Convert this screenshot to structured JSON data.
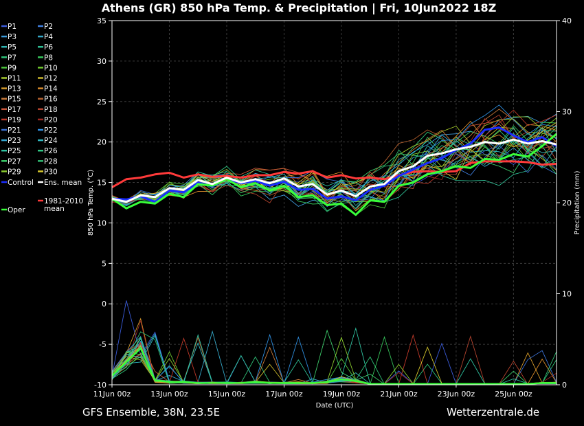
{
  "chart_data": {
    "type": "line",
    "title": "Athens  (GR)  850 hPa Temp. & Precipitation | Fri, 10Jun2022 18Z",
    "ylabel": "850 hPa Temp. (°C)",
    "y2label": "Precipitation (mm)",
    "xlabel": "Date (UTC)",
    "ylim": [
      -10,
      35
    ],
    "y2lim": [
      0,
      40
    ],
    "yticks": [
      "35",
      "30",
      "25",
      "20",
      "15",
      "10",
      "5",
      "0",
      "-5",
      "-10"
    ],
    "y2ticks": [
      "40",
      "30",
      "20",
      "10",
      "0"
    ],
    "xticks": [
      "11Jun 00z",
      "13Jun 00z",
      "15Jun 00z",
      "17Jun 00z",
      "19Jun 00z",
      "21Jun 00z",
      "23Jun 00z",
      "25Jun 00z"
    ],
    "grid": true,
    "footer_left": "GFS Ensemble, 38N, 23.5E",
    "footer_right": "Wetterzentrale.de",
    "legend": [
      {
        "label": "P1",
        "color": "#3a5bd9"
      },
      {
        "label": "P2",
        "color": "#3f7fe0"
      },
      {
        "label": "P3",
        "color": "#3c9ad8"
      },
      {
        "label": "P4",
        "color": "#35a8c9"
      },
      {
        "label": "P5",
        "color": "#2fb3b0"
      },
      {
        "label": "P6",
        "color": "#2fbf95"
      },
      {
        "label": "P7",
        "color": "#2fc278"
      },
      {
        "label": "P8",
        "color": "#35c45a"
      },
      {
        "label": "P9",
        "color": "#4cc63c"
      },
      {
        "label": "P10",
        "color": "#6fc92e"
      },
      {
        "label": "P11",
        "color": "#a4c92c"
      },
      {
        "label": "P12",
        "color": "#c8b52a"
      },
      {
        "label": "P13",
        "color": "#d49a2a"
      },
      {
        "label": "P14",
        "color": "#d88a2a"
      },
      {
        "label": "P15",
        "color": "#c97a3a"
      },
      {
        "label": "P16",
        "color": "#b4602e"
      },
      {
        "label": "P17",
        "color": "#c9563a"
      },
      {
        "label": "P18",
        "color": "#b2432e"
      },
      {
        "label": "P19",
        "color": "#c03a2a"
      },
      {
        "label": "P20",
        "color": "#a02a22"
      },
      {
        "label": "P21",
        "color": "#3a6fd0"
      },
      {
        "label": "P22",
        "color": "#2f8fe0"
      },
      {
        "label": "P23",
        "color": "#35a6d0"
      },
      {
        "label": "P24",
        "color": "#2fb8c0"
      },
      {
        "label": "P25",
        "color": "#2fc2a0"
      },
      {
        "label": "P26",
        "color": "#2fc885"
      },
      {
        "label": "P27",
        "color": "#3ccc6a"
      },
      {
        "label": "P28",
        "color": "#2fb870"
      },
      {
        "label": "P29",
        "color": "#8acb2e"
      },
      {
        "label": "P30",
        "color": "#d4c62c"
      },
      {
        "label": "Control",
        "color": "#1a2dff"
      },
      {
        "label": "Ens. mean",
        "color": "#ffffff"
      },
      {
        "label": "Oper",
        "color": "#39ff3a"
      },
      {
        "label": "1981-2010\nmean",
        "color": "#ff3a3a"
      }
    ],
    "x": [
      "11Jun 00z",
      "11Jun 12z",
      "12Jun 00z",
      "12Jun 12z",
      "13Jun 00z",
      "13Jun 12z",
      "14Jun 00z",
      "14Jun 12z",
      "15Jun 00z",
      "15Jun 12z",
      "16Jun 00z",
      "16Jun 12z",
      "17Jun 00z",
      "17Jun 12z",
      "18Jun 00z",
      "18Jun 12z",
      "19Jun 00z",
      "19Jun 12z",
      "20Jun 00z",
      "20Jun 12z",
      "21Jun 00z",
      "21Jun 12z",
      "22Jun 00z",
      "22Jun 12z",
      "23Jun 00z",
      "23Jun 12z",
      "24Jun 00z",
      "24Jun 12z",
      "25Jun 00z",
      "25Jun 12z",
      "26Jun 00z",
      "26Jun 12z"
    ],
    "series": [
      {
        "name": "Ens. mean",
        "color": "#ffffff",
        "values": [
          13,
          12.6,
          13.4,
          13.2,
          14.3,
          14.1,
          15.3,
          14.8,
          15.6,
          15.0,
          15.4,
          14.9,
          15.5,
          14.5,
          14.8,
          13.5,
          14.0,
          13.3,
          14.5,
          14.8,
          16.4,
          17.0,
          18.3,
          18.6,
          19.1,
          19.4,
          20.0,
          19.8,
          20.3,
          19.8,
          20.1,
          19.7
        ]
      },
      {
        "name": "Control",
        "color": "#1a2dff",
        "values": [
          13,
          12.9,
          13.3,
          12.6,
          14.0,
          13.8,
          15.0,
          14.5,
          15.5,
          14.9,
          15.2,
          14.6,
          15.1,
          14.1,
          14.2,
          13.0,
          13.3,
          12.8,
          14.1,
          14.6,
          15.8,
          16.6,
          17.4,
          18.0,
          19.0,
          19.8,
          21.5,
          21.8,
          20.8,
          20.0,
          20.6,
          19.5
        ]
      },
      {
        "name": "Oper",
        "color": "#39ff3a",
        "values": [
          13,
          11.8,
          12.6,
          12.4,
          13.6,
          13.2,
          14.8,
          14.6,
          15.4,
          14.4,
          14.9,
          14.0,
          14.6,
          13.2,
          13.4,
          12.2,
          12.4,
          11.0,
          12.8,
          12.6,
          14.6,
          15.0,
          16.0,
          16.4,
          17.0,
          16.8,
          17.9,
          17.8,
          18.5,
          18.2,
          19.5,
          21.0
        ]
      },
      {
        "name": "1981-2010 mean",
        "color": "#ff3a3a",
        "values": [
          14.4,
          15.4,
          15.6,
          16.0,
          16.2,
          15.6,
          16.0,
          15.7,
          15.8,
          15.6,
          15.9,
          15.9,
          16.3,
          16.1,
          16.4,
          15.6,
          15.9,
          15.5,
          15.6,
          15.4,
          15.9,
          16.3,
          16.4,
          16.3,
          16.4,
          17.4,
          17.6,
          17.6,
          17.6,
          17.5,
          17.2,
          17.3
        ]
      }
    ],
    "precip_mm": [
      1,
      2.5,
      4,
      0.5,
      0.3,
      0.3,
      0.2,
      0.2,
      0.2,
      0.2,
      0.3,
      0.2,
      0.2,
      0.2,
      0.2,
      0.3,
      0.6,
      0.4,
      0.1,
      0.1,
      0.1,
      0.1,
      0.1,
      0.1,
      0.1,
      0.1,
      0.1,
      0.1,
      0.1,
      0.1,
      0.2,
      0.2
    ]
  }
}
